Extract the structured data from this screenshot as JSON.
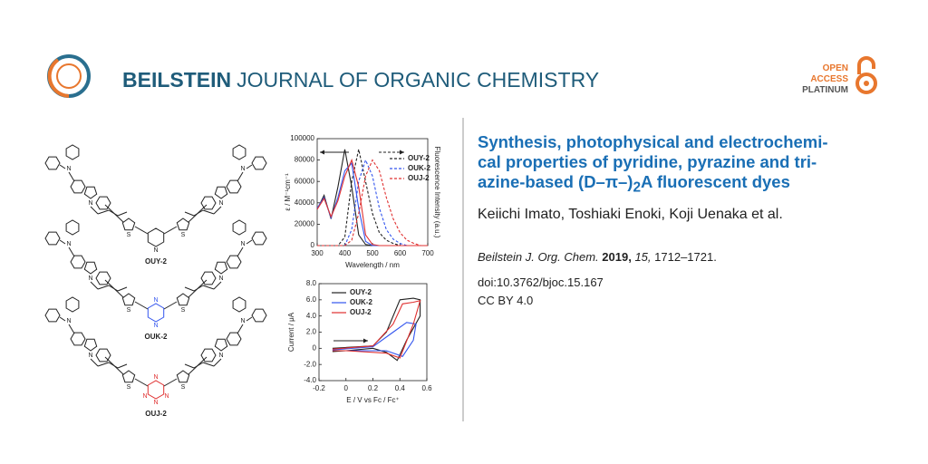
{
  "header": {
    "journal_bold": "BEILSTEIN",
    "journal_rest": "JOURNAL OF ORGANIC CHEMISTRY",
    "badge": [
      "OPEN",
      "ACCESS",
      "PLATINUM"
    ]
  },
  "article": {
    "title_lines": [
      "Synthesis, photophysical and electrochemi-",
      "cal properties of pyridine, pyrazine and tri-"
    ],
    "title_last": [
      "azine-based (D–π–)",
      "2",
      "A fluorescent dyes"
    ],
    "authors": "Keiichi Imato, Toshiaki Enoki, Koji Uenaka et al.",
    "citation": {
      "journal": "Beilstein J. Org. Chem.",
      "year": "2019,",
      "volume": "15,",
      "pages": "1712–1721."
    },
    "doi": "doi:10.3762/bjoc.15.167",
    "license": "CC BY 4.0"
  },
  "figure": {
    "compounds": [
      "OUY-2",
      "OUK-2",
      "OUJ-2"
    ],
    "atoms": {
      "n": "N",
      "s": "S"
    }
  },
  "chart_data": [
    {
      "type": "line",
      "xlabel": "Wavelength / nm",
      "ylabel": "ε / M⁻¹cm⁻¹",
      "y2label": "Fluorescence Intensity (a.u.)",
      "x": [
        300,
        325,
        350,
        375,
        400,
        425,
        450,
        475,
        500,
        525,
        550,
        575,
        600,
        625,
        650,
        675,
        700
      ],
      "xlim": [
        300,
        700
      ],
      "xticks": [
        300,
        400,
        500,
        600,
        700
      ],
      "ylim": [
        0,
        100000
      ],
      "yticks": [
        0,
        20000,
        40000,
        60000,
        80000,
        100000
      ],
      "series": [
        {
          "name": "OUY-2",
          "color": "#222222",
          "values": [
            34000,
            47000,
            25000,
            55000,
            90000,
            55000,
            10000,
            1000,
            0,
            0,
            0,
            0,
            0,
            0,
            0,
            0,
            0
          ],
          "emission": [
            0,
            0,
            0,
            0,
            8000,
            60000,
            90000,
            60000,
            30000,
            12000,
            5000,
            2000,
            0,
            0,
            0,
            0,
            0
          ]
        },
        {
          "name": "OUK-2",
          "color": "#3355ee",
          "values": [
            35000,
            45000,
            26000,
            45000,
            70000,
            77000,
            35000,
            4000,
            0,
            0,
            0,
            0,
            0,
            0,
            0,
            0,
            0
          ],
          "emission": [
            0,
            0,
            0,
            0,
            0,
            15000,
            60000,
            80000,
            65000,
            35000,
            15000,
            6000,
            2000,
            0,
            0,
            0,
            0
          ]
        },
        {
          "name": "OUJ-2",
          "color": "#e03030",
          "values": [
            34000,
            44000,
            27000,
            42000,
            65000,
            80000,
            55000,
            10000,
            1000,
            0,
            0,
            0,
            0,
            0,
            0,
            0,
            0
          ],
          "emission": [
            0,
            0,
            0,
            0,
            0,
            5000,
            30000,
            65000,
            80000,
            70000,
            45000,
            25000,
            12000,
            5000,
            2000,
            0,
            0
          ]
        }
      ]
    },
    {
      "type": "line",
      "xlabel": "E / V vs Fc / Fc⁺",
      "ylabel": "Current / μA",
      "xlim": [
        -0.2,
        0.6
      ],
      "xticks": [
        -0.2,
        0,
        0.2,
        0.4,
        0.6
      ],
      "ylim": [
        -4,
        8
      ],
      "yticks": [
        {
          "value": -4,
          "label": "-4.0"
        },
        {
          "value": -2,
          "label": "-2.0"
        },
        0,
        {
          "value": 2,
          "label": "2.0"
        },
        {
          "value": 4,
          "label": "4.0"
        },
        {
          "value": 6,
          "label": "6.0"
        },
        {
          "value": 8,
          "label": "8.0"
        }
      ],
      "series": [
        {
          "name": "OUY-2",
          "color": "#222222",
          "x": [
            -0.1,
            0.2,
            0.3,
            0.4,
            0.5,
            0.55,
            0.55,
            0.45,
            0.38,
            0.3,
            0.2,
            0,
            -0.1
          ],
          "values": [
            0,
            0.3,
            2,
            6,
            6.2,
            6,
            4,
            1,
            -1.5,
            -0.5,
            0,
            -0.3,
            -0.4
          ]
        },
        {
          "name": "OUK-2",
          "color": "#3355ee",
          "x": [
            -0.1,
            0.2,
            0.35,
            0.45,
            0.52,
            0.5,
            0.42,
            0.3,
            0,
            -0.1
          ],
          "values": [
            -0.2,
            0.2,
            2,
            3.2,
            3,
            1,
            -1,
            -0.3,
            -0.3,
            -0.3
          ]
        },
        {
          "name": "OUJ-2",
          "color": "#e03030",
          "x": [
            -0.1,
            0.2,
            0.35,
            0.42,
            0.5,
            0.55,
            0.5,
            0.4,
            0.3,
            0,
            -0.1
          ],
          "values": [
            -0.1,
            0.3,
            3,
            5.5,
            5.7,
            5.9,
            3,
            -1.2,
            -0.6,
            -0.3,
            -0.3
          ]
        }
      ]
    }
  ]
}
